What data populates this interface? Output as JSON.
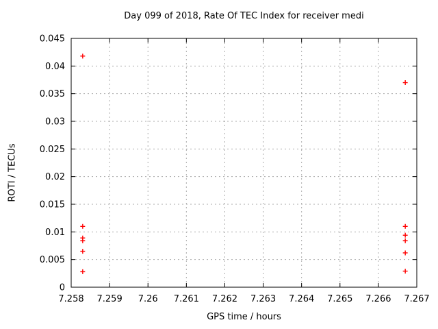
{
  "chart_data": {
    "type": "scatter",
    "title": "Day 099 of 2018, Rate Of TEC Index for receiver medi",
    "xlabel": "GPS time / hours",
    "ylabel": "ROTI / TECUs",
    "xlim": [
      7.258,
      7.267
    ],
    "ylim": [
      0,
      0.045
    ],
    "xticks": [
      7.258,
      7.259,
      7.26,
      7.261,
      7.262,
      7.263,
      7.264,
      7.265,
      7.266,
      7.267
    ],
    "xtick_labels": [
      "7.258",
      "7.259",
      "7.26",
      "7.261",
      "7.262",
      "7.263",
      "7.264",
      "7.265",
      "7.266",
      "7.267"
    ],
    "yticks": [
      0,
      0.005,
      0.01,
      0.015,
      0.02,
      0.025,
      0.03,
      0.035,
      0.04,
      0.045
    ],
    "ytick_labels": [
      "0",
      "0.005",
      "0.01",
      "0.015",
      "0.02",
      "0.025",
      "0.03",
      "0.035",
      "0.04",
      "0.045"
    ],
    "grid": true,
    "grid_style": "dashed",
    "legend": "none",
    "marker": "plus",
    "colors": {
      "points": "#ff0000",
      "grid": "#aaaaaa",
      "border": "#000000",
      "text": "#000000",
      "background": "#ffffff"
    },
    "series": [
      {
        "name": "ROTI",
        "points": [
          [
            7.2583,
            0.0418
          ],
          [
            7.2583,
            0.011
          ],
          [
            7.2583,
            0.0089
          ],
          [
            7.2583,
            0.0084
          ],
          [
            7.2583,
            0.0065
          ],
          [
            7.2583,
            0.0028
          ],
          [
            7.2667,
            0.037
          ],
          [
            7.2667,
            0.011
          ],
          [
            7.2667,
            0.0094
          ],
          [
            7.2667,
            0.0084
          ],
          [
            7.2667,
            0.0062
          ],
          [
            7.2667,
            0.0029
          ]
        ]
      }
    ]
  }
}
